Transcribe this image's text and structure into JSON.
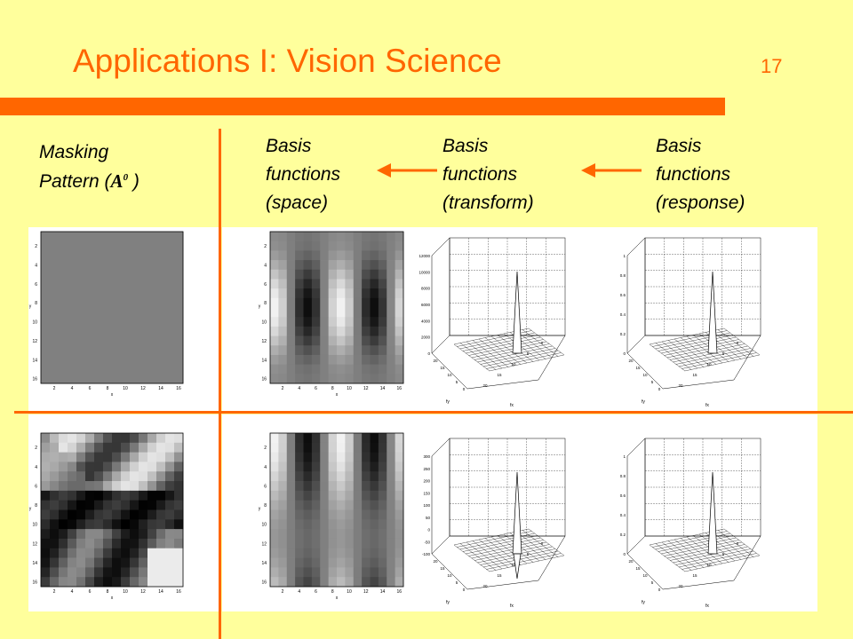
{
  "slide": {
    "title": "Applications I: Vision Science",
    "page_number": "17"
  },
  "headers": {
    "masking_line1": "Masking",
    "masking_line2_prefix": "Pattern (",
    "masking_symbol": "A",
    "masking_superscript": "0",
    "masking_line2_suffix": " )",
    "space": [
      "Basis",
      "functions",
      "(space)"
    ],
    "transform": [
      "Basis",
      "functions",
      "(transform)"
    ],
    "response": [
      "Basis",
      "functions",
      "(response)"
    ]
  },
  "plots": {
    "image_ticks": [
      "2",
      "4",
      "6",
      "8",
      "10",
      "12",
      "14",
      "16"
    ],
    "transform_top_z_ticks": [
      "12000",
      "10000",
      "8000",
      "6000",
      "4000",
      "2000",
      "0"
    ],
    "transform_bottom_z_ticks": [
      "300",
      "250",
      "200",
      "150",
      "100",
      "50",
      "0",
      "-50",
      "-100"
    ],
    "response_z_ticks": [
      "1",
      "0.8",
      "0.6",
      "0.4",
      "0.2",
      "0"
    ],
    "floor_ticks": [
      "20",
      "15",
      "10",
      "5",
      "0"
    ],
    "x_axis_label": "x",
    "y_axis_label": "y",
    "fx_label": "fx",
    "fy_label": "fy",
    "r_label": "r"
  },
  "colors": {
    "background": "#ffff9c",
    "accent": "#ff6600"
  }
}
